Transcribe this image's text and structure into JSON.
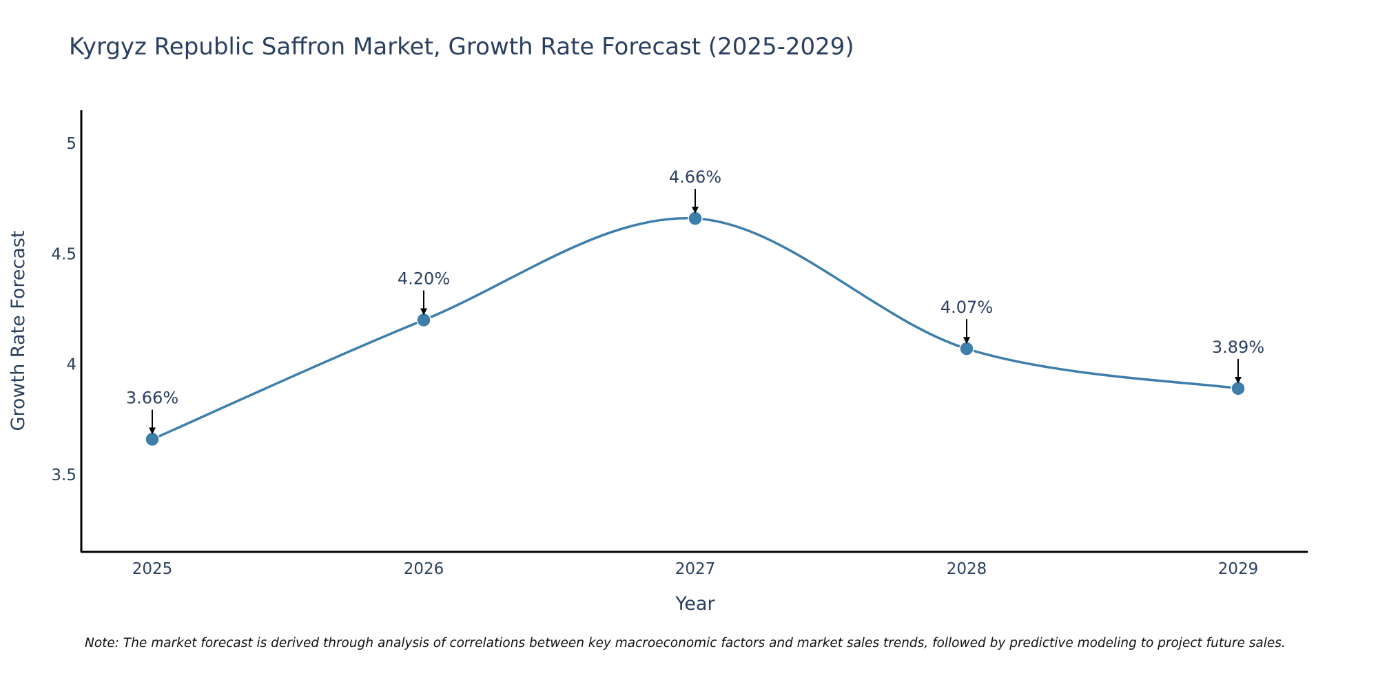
{
  "chart_data": {
    "type": "line",
    "title": "Kyrgyz Republic Saffron Market, Growth Rate Forecast (2025-2029)",
    "xlabel": "Year",
    "ylabel": "Growth Rate Forecast",
    "categories": [
      "2025",
      "2026",
      "2027",
      "2028",
      "2029"
    ],
    "series": [
      {
        "name": "Growth Rate Forecast",
        "values": [
          3.66,
          4.2,
          4.66,
          4.07,
          3.89
        ],
        "labels": [
          "3.66%",
          "4.20%",
          "4.66%",
          "4.07%",
          "3.89%"
        ],
        "color": "#3d7eab"
      }
    ],
    "yticks": [
      3.5,
      4,
      4.5,
      5
    ],
    "ytick_labels": [
      "3.5",
      "4",
      "4.5",
      "5"
    ],
    "ylim": [
      3.15,
      5.15
    ],
    "grid": false,
    "line_shape": "spline",
    "annotation_arrows": true
  },
  "note": "Note: The market forecast is derived through analysis of correlations between key macroeconomic factors and market sales trends, followed by predictive modeling to project future sales."
}
